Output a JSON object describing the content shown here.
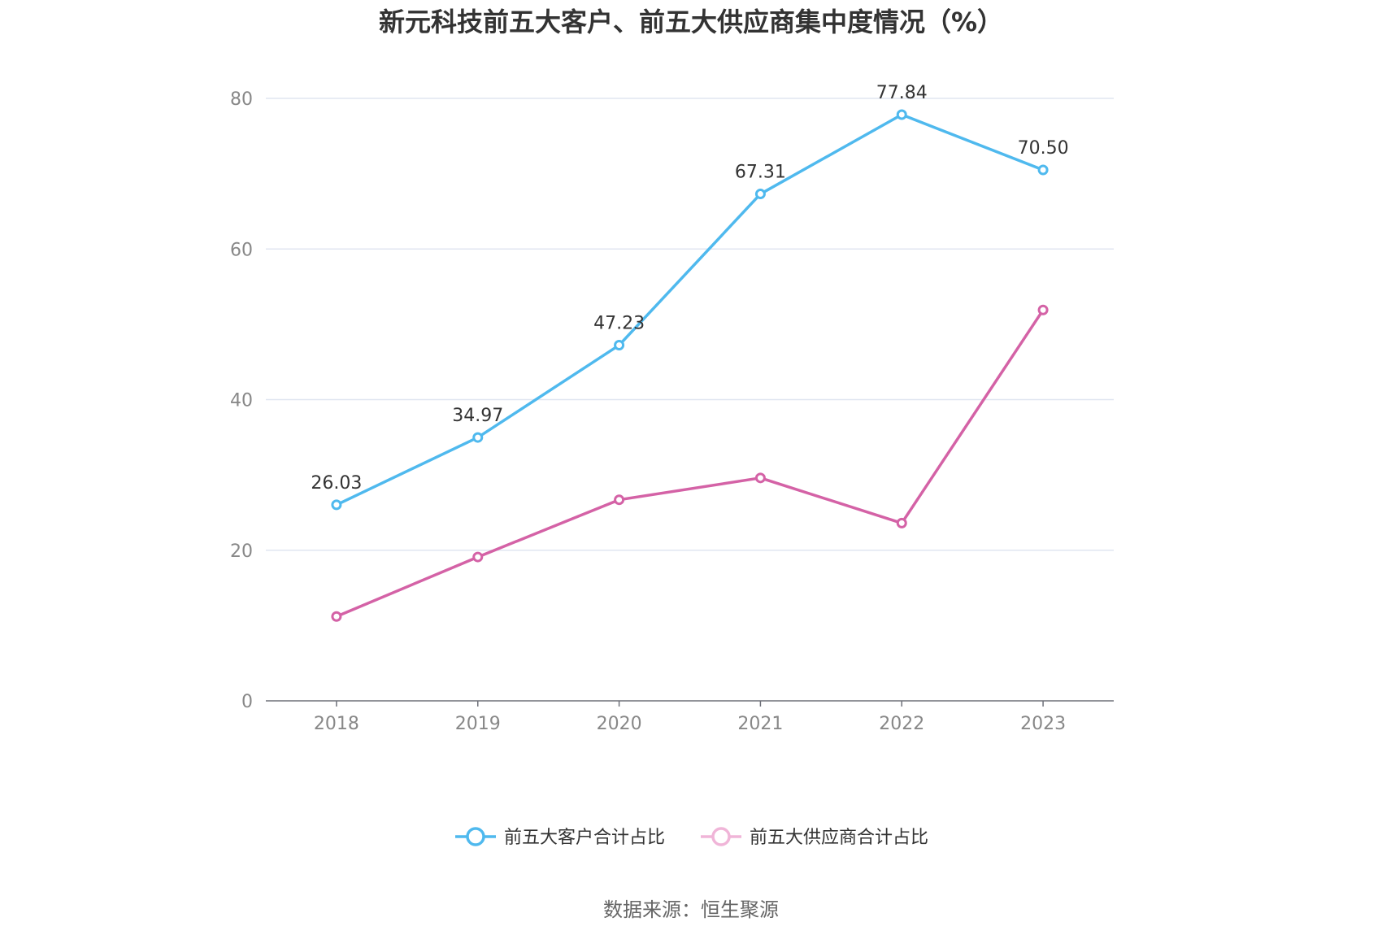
{
  "chart_data": {
    "type": "line",
    "title": "新元科技前五大客户、前五大供应商集中度情况（%）",
    "categories": [
      "2018",
      "2019",
      "2020",
      "2021",
      "2022",
      "2023"
    ],
    "series": [
      {
        "name": "前五大客户合计占比",
        "values": [
          26.03,
          34.97,
          47.23,
          67.31,
          77.84,
          70.5
        ],
        "labels": [
          "26.03",
          "34.97",
          "47.23",
          "67.31",
          "77.84",
          "70.50"
        ],
        "color": "#4fb9ee",
        "show_labels": true
      },
      {
        "name": "前五大供应商合计占比",
        "values": [
          11.2,
          19.1,
          26.7,
          29.6,
          23.6,
          51.9
        ],
        "color": "#d462a6",
        "show_labels": false
      }
    ],
    "ylim": [
      0,
      80
    ],
    "yticks": [
      "0",
      "20",
      "40",
      "60",
      "80"
    ],
    "grid": true,
    "legend": "bottom-center",
    "legend_colors": [
      "#4fb9ee",
      "#f0b5d8"
    ]
  },
  "source": "数据来源：恒生聚源"
}
